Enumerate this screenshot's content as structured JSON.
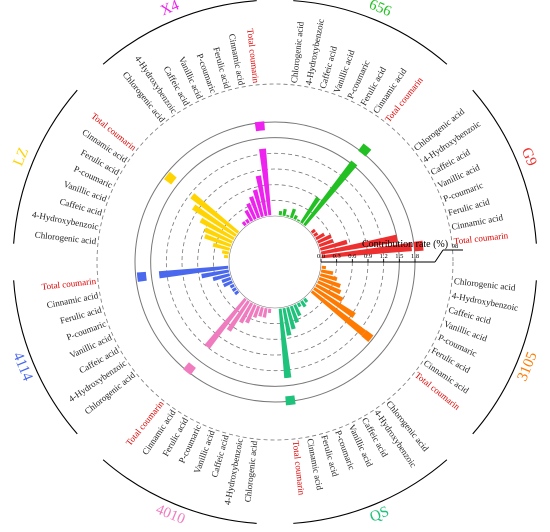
{
  "chart_data": {
    "type": "radial-bar",
    "title": "",
    "axis_label": "Contribution rate (%)",
    "radial_ticks": [
      "0.0",
      "0.3",
      "0.6",
      "0.9",
      "1.2",
      "1.5",
      "1.8"
    ],
    "radial_ticks_extra": [
      "98"
    ],
    "radial_range": [
      0,
      1.8
    ],
    "grid": true,
    "categories": [
      "Chlorogenic acid",
      "4-Hydroxybenzoic",
      "Caffeic acid",
      "Vanillic acid",
      "P-coumaric",
      "Ferulic acid",
      "Cinnamic acid",
      "Total coumarin"
    ],
    "series": [
      {
        "name": "656",
        "color": "#22c022",
        "values": [
          0.1,
          0.15,
          0.05,
          0.2,
          0.1,
          0.05,
          0.6,
          1.55
        ],
        "total_marker": 1.78
      },
      {
        "name": "G9",
        "color": "#ee2f2f",
        "values": [
          0.1,
          0.1,
          0.2,
          0.3,
          0.3,
          0.55,
          1.5,
          1.75
        ],
        "total_marker": 1.8
      },
      {
        "name": "3105",
        "color": "#ff7a00",
        "values": [
          0.1,
          0.25,
          0.35,
          0.45,
          0.5,
          0.6,
          0.95,
          1.3
        ],
        "total_marker": 1.3
      },
      {
        "name": "QS",
        "color": "#1ec27a",
        "values": [
          0.1,
          0.15,
          0.1,
          0.25,
          0.35,
          0.45,
          0.55,
          1.35
        ],
        "total_marker": 1.7
      },
      {
        "name": "4010",
        "color": "#f07cc0",
        "values": [
          0.1,
          0.2,
          0.2,
          0.25,
          0.4,
          0.45,
          0.7,
          1.2
        ],
        "total_marker": 1.65
      },
      {
        "name": "4114",
        "color": "#4a68ee",
        "values": [
          0.1,
          0.1,
          0.1,
          0.2,
          0.2,
          0.35,
          0.55,
          1.35
        ],
        "total_marker": 1.6
      },
      {
        "name": "LZ",
        "color": "#ffd400",
        "values": [
          0.1,
          0.15,
          0.35,
          0.55,
          0.6,
          0.75,
          1.0,
          1.15
        ],
        "total_marker": 1.6
      },
      {
        "name": "X4",
        "color": "#ee22ee",
        "values": [
          0.1,
          0.1,
          0.25,
          0.35,
          0.45,
          0.55,
          0.8,
          1.3
        ],
        "total_marker": 1.65
      }
    ]
  },
  "colors": {
    "axis": "#000000",
    "gridline": "#777777",
    "total_coumarin_label": "#dd0000",
    "compound_label": "#222222"
  }
}
